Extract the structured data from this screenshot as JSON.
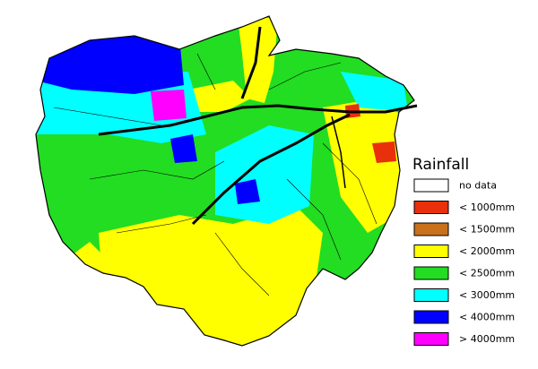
{
  "legend": {
    "title": "Rainfall",
    "items": [
      {
        "label": "no data",
        "color": "#ffffff"
      },
      {
        "label": "< 1000mm",
        "color": "#e8300c"
      },
      {
        "label": "< 1500mm",
        "color": "#c8701c"
      },
      {
        "label": "< 2000mm",
        "color": "#ffff00"
      },
      {
        "label": "< 2500mm",
        "color": "#22dd22"
      },
      {
        "label": "< 3000mm",
        "color": "#00ffff"
      },
      {
        "label": "< 4000mm",
        "color": "#0000ff"
      },
      {
        "label": "> 4000mm",
        "color": "#ff00ff"
      }
    ]
  }
}
